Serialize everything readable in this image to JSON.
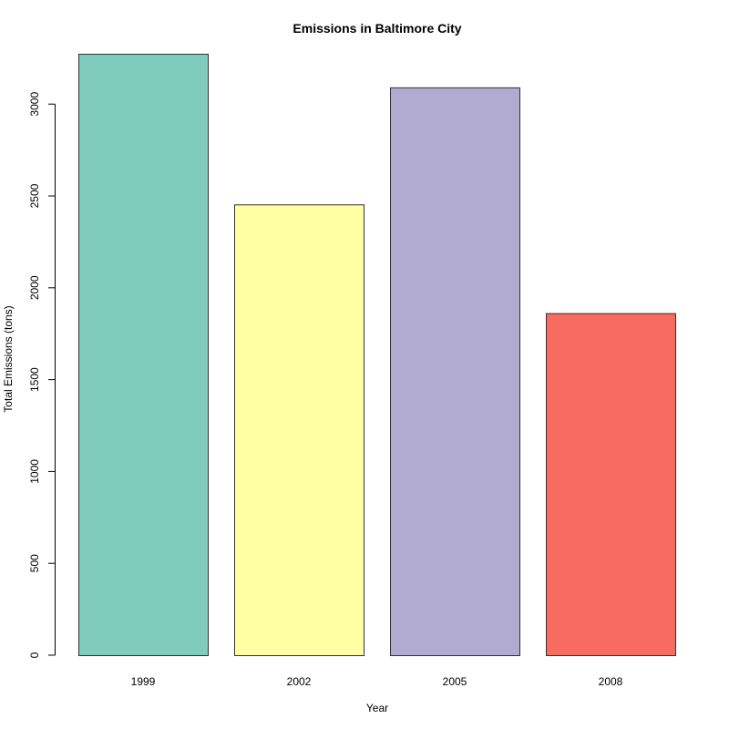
{
  "chart_data": {
    "type": "bar",
    "title": "Emissions in Baltimore City",
    "xlabel": "Year",
    "ylabel": "Total Emissions (tons)",
    "categories": [
      "1999",
      "2002",
      "2005",
      "2008"
    ],
    "values": [
      3274,
      2454,
      3091,
      1862
    ],
    "colors": [
      "#7FCBBC",
      "#FFFFA3",
      "#B1ABD2",
      "#F76B60"
    ],
    "bar_border_color": "#333333",
    "ylim": [
      0,
      3274
    ],
    "yticks": [
      0,
      500,
      1000,
      1500,
      2000,
      2500,
      3000
    ],
    "ytick_labels": [
      "0",
      "500",
      "1000",
      "1500",
      "2000",
      "2500",
      "3000"
    ],
    "grid": false,
    "legend": "none"
  }
}
